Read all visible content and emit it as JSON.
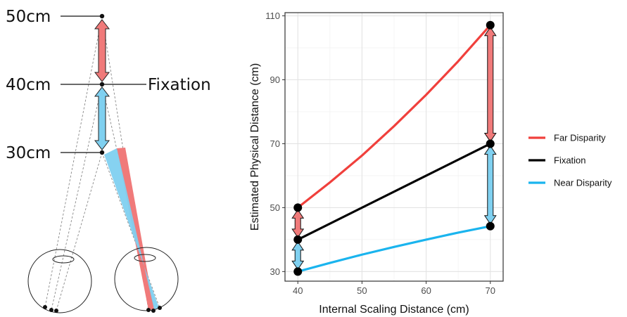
{
  "diagram": {
    "labels": {
      "far": "50cm",
      "fixation_distance": "40cm",
      "fixation": "Fixation",
      "near": "30cm"
    },
    "colors": {
      "far": "#f07a7a",
      "near": "#7fd0f0"
    }
  },
  "chart_data": {
    "type": "line",
    "xlabel": "Internal Scaling Distance (cm)",
    "ylabel": "Estimated Physical Distance (cm)",
    "xlim": [
      38,
      72
    ],
    "ylim": [
      27,
      111
    ],
    "x_ticks": [
      40,
      50,
      60,
      70
    ],
    "y_ticks": [
      30,
      50,
      70,
      90,
      110
    ],
    "grid": true,
    "legend_position": "right",
    "series": [
      {
        "name": "Far Disparity",
        "color": "#f0403c",
        "x": [
          40,
          45,
          50,
          55,
          60,
          65,
          70
        ],
        "y": [
          50,
          57.9,
          66.3,
          75.5,
          85.3,
          95.8,
          107.1
        ]
      },
      {
        "name": "Fixation",
        "color": "#000000",
        "x": [
          40,
          70
        ],
        "y": [
          40,
          70
        ]
      },
      {
        "name": "Near Disparity",
        "color": "#1ab4ee",
        "x": [
          40,
          45,
          50,
          55,
          60,
          65,
          70
        ],
        "y": [
          30,
          32.7,
          35.3,
          37.7,
          40.0,
          42.2,
          44.2
        ]
      }
    ],
    "points": [
      {
        "x": 40,
        "y": 50
      },
      {
        "x": 40,
        "y": 40
      },
      {
        "x": 40,
        "y": 30
      },
      {
        "x": 70,
        "y": 107.1
      },
      {
        "x": 70,
        "y": 70
      },
      {
        "x": 70,
        "y": 44.2
      }
    ],
    "arrows": [
      {
        "x": 40,
        "from": 40,
        "to": 50,
        "color": "#f07a7a"
      },
      {
        "x": 40,
        "from": 30,
        "to": 40,
        "color": "#7fd0f0"
      },
      {
        "x": 70,
        "from": 70,
        "to": 107.1,
        "color": "#f07a7a"
      },
      {
        "x": 70,
        "from": 44.2,
        "to": 70,
        "color": "#7fd0f0"
      }
    ]
  }
}
